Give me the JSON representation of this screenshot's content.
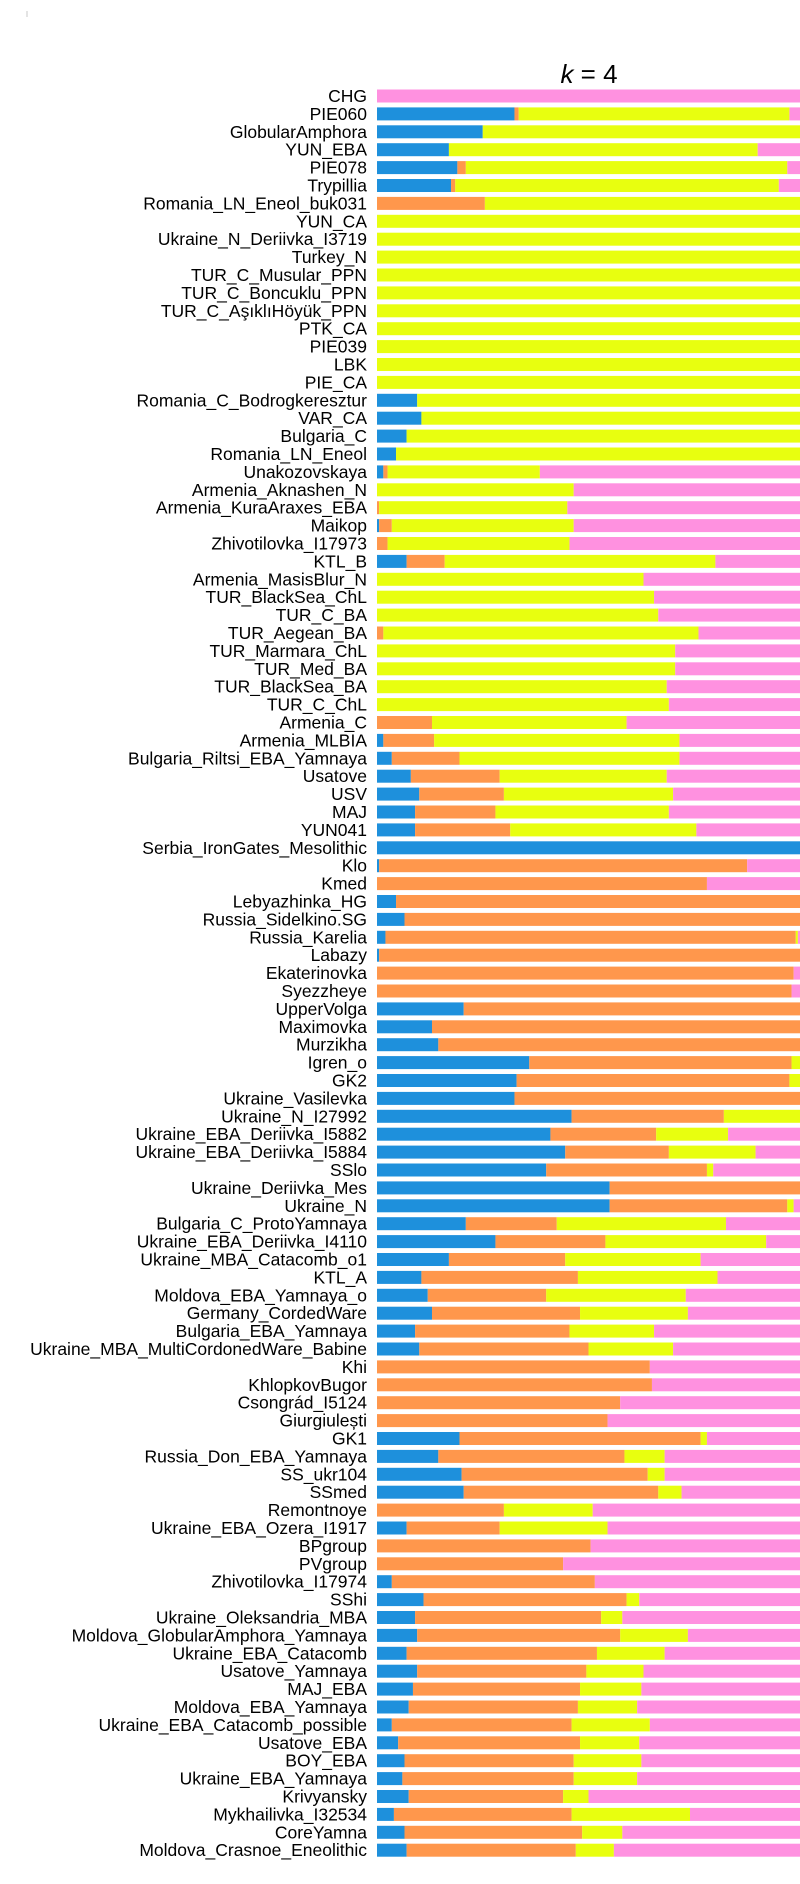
{
  "chart_data": {
    "type": "bar",
    "orientation": "horizontal-stacked",
    "title_var": "k",
    "title_rest": " = 4",
    "colors": {
      "c1": "#1E90DC",
      "c2": "#FF974C",
      "c3": "#E8FF0F",
      "c4": "#FF91E0"
    },
    "series": [
      {
        "key": "c1"
      },
      {
        "key": "c2"
      },
      {
        "key": "c3"
      },
      {
        "key": "c4"
      }
    ],
    "categories": [
      "CHG",
      "PIE060",
      "GlobularAmphora",
      "YUN_EBA",
      "PIE078",
      "Trypillia",
      "Romania_LN_Eneol_buk031",
      "YUN_CA",
      "Ukraine_N_Deriivka_I3719",
      "Turkey_N",
      "TUR_C_Musular_PPN",
      "TUR_C_Boncuklu_PPN",
      "TUR_C_AşıklıHöyük_PPN",
      "PTK_CA",
      "PIE039",
      "LBK",
      "PIE_CA",
      "Romania_C_Bodrogkeresztur",
      "VAR_CA",
      "Bulgaria_C",
      "Romania_LN_Eneol",
      "Unakozovskaya",
      "Armenia_Aknashen_N",
      "Armenia_KuraAraxes_EBA",
      "Maikop",
      "Zhivotilovka_I17973",
      "KTL_B",
      "Armenia_MasisBlur_N",
      "TUR_BlackSea_ChL",
      "TUR_C_BA",
      "TUR_Aegean_BA",
      "TUR_Marmara_ChL",
      "TUR_Med_BA",
      "TUR_BlackSea_BA",
      "TUR_C_ChL",
      "Armenia_C",
      "Armenia_MLBIA",
      "Bulgaria_Riltsi_EBA_Yamnaya",
      "Usatove",
      "USV",
      "MAJ",
      "YUN041",
      "Serbia_IronGates_Mesolithic",
      "Klo",
      "Kmed",
      "Lebyazhinka_HG",
      "Russia_Sidelkino.SG",
      "Russia_Karelia",
      "Labazy",
      "Ekaterinovka",
      "Syezzheye",
      "UpperVolga",
      "Maximovka",
      "Murzikha",
      "Igren_o",
      "GK2",
      "Ukraine_Vasilevka",
      "Ukraine_N_I27992",
      "Ukraine_EBA_Deriivka_I5882",
      "Ukraine_EBA_Deriivka_I5884",
      "SSlo",
      "Ukraine_Deriivka_Mes",
      "Ukraine_N",
      "Bulgaria_C_ProtoYamnaya",
      "Ukraine_EBA_Deriivka_I4110",
      "Ukraine_MBA_Catacomb_o1",
      "KTL_A",
      "Moldova_EBA_Yamnaya_o",
      "Germany_CordedWare",
      "Bulgaria_EBA_Yamnaya",
      "Ukraine_MBA_MultiCordonedWare_Babine",
      "Khi",
      "KhlopkovBugor",
      "Csongrád_I5124",
      "Giurgiulești",
      "GK1",
      "Russia_Don_EBA_Yamnaya",
      "SS_ukr104",
      "SSmed",
      "Remontnoye",
      "Ukraine_EBA_Ozera_I1917",
      "BPgroup",
      "PVgroup",
      "Zhivotilovka_I17974",
      "SShi",
      "Ukraine_Oleksandria_MBA",
      "Moldova_GlobularAmphora_Yamnaya",
      "Ukraine_EBA_Catacomb",
      "Usatove_Yamnaya",
      "MAJ_EBA",
      "Moldova_EBA_Yamnaya",
      "Ukraine_EBA_Catacomb_possible",
      "Usatove_EBA",
      "BOY_EBA",
      "Ukraine_EBA_Yamnaya",
      "Krivyansky",
      "Mykhailivka_I32534",
      "CoreYamna",
      "Moldova_Crasnoe_Eneolithic"
    ],
    "values": [
      [
        0,
        0,
        0,
        100
      ],
      [
        32.5,
        1,
        64,
        2.5
      ],
      [
        25,
        0,
        75,
        0
      ],
      [
        17,
        0,
        73,
        10
      ],
      [
        19,
        2,
        76,
        3
      ],
      [
        17.5,
        1,
        76.5,
        5
      ],
      [
        0,
        25.5,
        74.5,
        0
      ],
      [
        0,
        0,
        100,
        0
      ],
      [
        0,
        0,
        100,
        0
      ],
      [
        0,
        0,
        100,
        0
      ],
      [
        0,
        0,
        100,
        0
      ],
      [
        0,
        0,
        100,
        0
      ],
      [
        0,
        0,
        100,
        0
      ],
      [
        0,
        0,
        100,
        0
      ],
      [
        0,
        0,
        100,
        0
      ],
      [
        0,
        0,
        100,
        0
      ],
      [
        0,
        0,
        100,
        0
      ],
      [
        9.5,
        0,
        90.5,
        0
      ],
      [
        10.5,
        0,
        89.5,
        0
      ],
      [
        7,
        0,
        93,
        0
      ],
      [
        4.5,
        0,
        95.5,
        0
      ],
      [
        1.5,
        1,
        36,
        61.5
      ],
      [
        0,
        0,
        46.5,
        53.5
      ],
      [
        0,
        0.5,
        44.5,
        55
      ],
      [
        0.5,
        3,
        43,
        53.5
      ],
      [
        0,
        2.5,
        43,
        54.5
      ],
      [
        7,
        9,
        64,
        20
      ],
      [
        0,
        0,
        63,
        37
      ],
      [
        0,
        0,
        65.5,
        34.5
      ],
      [
        0,
        0,
        66.5,
        33.5
      ],
      [
        0,
        1.5,
        74.5,
        24
      ],
      [
        0,
        0,
        70.5,
        29.5
      ],
      [
        0,
        0,
        70.5,
        29.5
      ],
      [
        0,
        0,
        68.5,
        31.5
      ],
      [
        0,
        0,
        69,
        31
      ],
      [
        0,
        13,
        46,
        41
      ],
      [
        1.5,
        12,
        58,
        28.5
      ],
      [
        3.5,
        16,
        52,
        28.5
      ],
      [
        8,
        21,
        39.5,
        31.5
      ],
      [
        10,
        20,
        40,
        30
      ],
      [
        9,
        19,
        41,
        31
      ],
      [
        9,
        22.5,
        44,
        24.5
      ],
      [
        100,
        0,
        0,
        0
      ],
      [
        0.5,
        87,
        0,
        12.5
      ],
      [
        0,
        78,
        0,
        22
      ],
      [
        4.5,
        95.5,
        0,
        0
      ],
      [
        6.5,
        93.5,
        0,
        0
      ],
      [
        2,
        97,
        0.5,
        0.5
      ],
      [
        0.5,
        99.5,
        0,
        0
      ],
      [
        0,
        98.5,
        0,
        1.5
      ],
      [
        0,
        98,
        0,
        2
      ],
      [
        20.5,
        79.5,
        0,
        0
      ],
      [
        13,
        87,
        0,
        0
      ],
      [
        14.5,
        85.5,
        0,
        0
      ],
      [
        36,
        62,
        2,
        0
      ],
      [
        33,
        64.5,
        2.5,
        0
      ],
      [
        32.5,
        67.5,
        0,
        0
      ],
      [
        46,
        36,
        18,
        0
      ],
      [
        41,
        25,
        17,
        17
      ],
      [
        44.5,
        24.5,
        20.5,
        10.5
      ],
      [
        40,
        38,
        1.5,
        20.5
      ],
      [
        55,
        45,
        0,
        0
      ],
      [
        55,
        42,
        1.5,
        1.5
      ],
      [
        21,
        21.5,
        40,
        17.5
      ],
      [
        28,
        26,
        38,
        8
      ],
      [
        17,
        27.5,
        32,
        23.5
      ],
      [
        10.5,
        37,
        33,
        19.5
      ],
      [
        12,
        28,
        33,
        27
      ],
      [
        13,
        35,
        25.5,
        26.5
      ],
      [
        9,
        36.5,
        20,
        34.5
      ],
      [
        10,
        40,
        20,
        30
      ],
      [
        0,
        64.5,
        0,
        35.5
      ],
      [
        0,
        65,
        0,
        35
      ],
      [
        0,
        57.5,
        0,
        42.5
      ],
      [
        0,
        54.5,
        0,
        45.5
      ],
      [
        19.5,
        57,
        1.5,
        22
      ],
      [
        14.5,
        44,
        9.5,
        32
      ],
      [
        20,
        44,
        4,
        32
      ],
      [
        20.5,
        46,
        5.5,
        28
      ],
      [
        0,
        30,
        21,
        49
      ],
      [
        7,
        22,
        25.5,
        45.5
      ],
      [
        0,
        50.5,
        0,
        49.5
      ],
      [
        0,
        44,
        0,
        56
      ],
      [
        3.5,
        48,
        0,
        48.5
      ],
      [
        11,
        48,
        3,
        38
      ],
      [
        9,
        44,
        5,
        42
      ],
      [
        9.5,
        48,
        16,
        26.5
      ],
      [
        7,
        45,
        16,
        32
      ],
      [
        9.5,
        40,
        13.5,
        37
      ],
      [
        8.5,
        39.5,
        14.5,
        37.5
      ],
      [
        7.5,
        40,
        14,
        38.5
      ],
      [
        3.5,
        42.5,
        18.5,
        35.5
      ],
      [
        5,
        43,
        14,
        38
      ],
      [
        6.5,
        40,
        16,
        37.5
      ],
      [
        6,
        40.5,
        15,
        38.5
      ],
      [
        7.5,
        36.5,
        6,
        50
      ],
      [
        4,
        42,
        28,
        26
      ],
      [
        6.5,
        42,
        9.5,
        42
      ],
      [
        7,
        40,
        9,
        44
      ]
    ],
    "xlim": [
      0,
      100
    ],
    "xlabel": "",
    "ylabel": "",
    "legend": "none",
    "grid": false
  }
}
